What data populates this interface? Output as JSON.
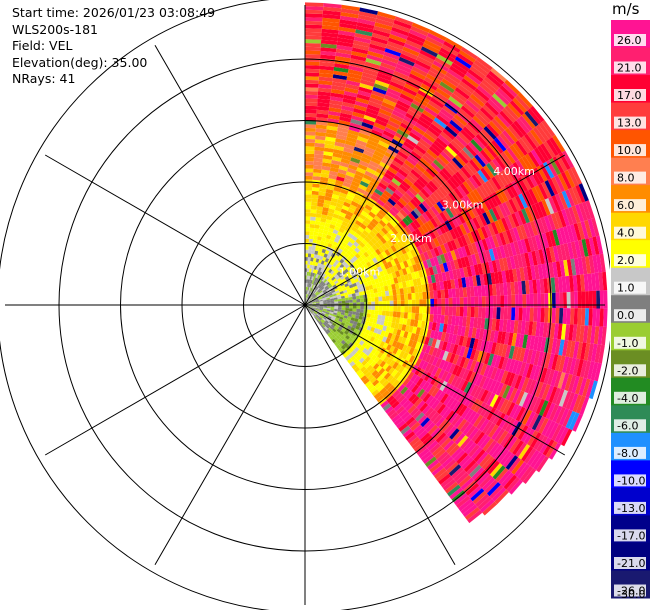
{
  "header": {
    "start_time": "Start time: 2026/01/23 03:08:49",
    "station": "WLS200s-181",
    "field": "Field: VEL",
    "elevation": "Elevation(deg): 35.00",
    "nrays": "NRays: 41"
  },
  "chart_data": {
    "type": "heatmap",
    "projection": "polar PPI",
    "range_labels": [
      "1.00km",
      "2.00km",
      "3.00km",
      "4.00km"
    ],
    "sector_azimuth_deg": [
      0,
      143
    ],
    "max_range_km": 4.9,
    "colorbar": {
      "unit": "m/s",
      "levels": [
        "26.0",
        "21.0",
        "17.0",
        "13.0",
        "10.0",
        "8.0",
        "6.0",
        "4.0",
        "2.0",
        "1.0",
        "0.0",
        "-1.0",
        "-2.0",
        "-4.0",
        "-6.0",
        "-8.0",
        "-10.0",
        "-13.0",
        "-17.0",
        "-21.0",
        "-26.0",
        "-30.0"
      ],
      "colors": [
        "#ff1493",
        "#ff1f70",
        "#ff0033",
        "#ff3c3c",
        "#ff5500",
        "#ff7f50",
        "#ff8c00",
        "#ffd700",
        "#ffff00",
        "#c8c8c8",
        "#7f7f7f",
        "#9acd32",
        "#6b8e23",
        "#228b22",
        "#2e8b57",
        "#1e90ff",
        "#0000ff",
        "#0000cd",
        "#00008b",
        "#000080",
        "#191970"
      ]
    },
    "velocity_zones": [
      {
        "range_km": [
          0,
          1.0
        ],
        "dominant": "0.0 to 2.0 (gray/yellow/olive)"
      },
      {
        "range_km": [
          1.0,
          2.0
        ],
        "dominant": "2.0 to 6.0 (yellow/orange)"
      },
      {
        "range_km": [
          2.0,
          4.9
        ],
        "dominant": "13.0 to 26.0 (red/pink) with noise"
      }
    ]
  }
}
